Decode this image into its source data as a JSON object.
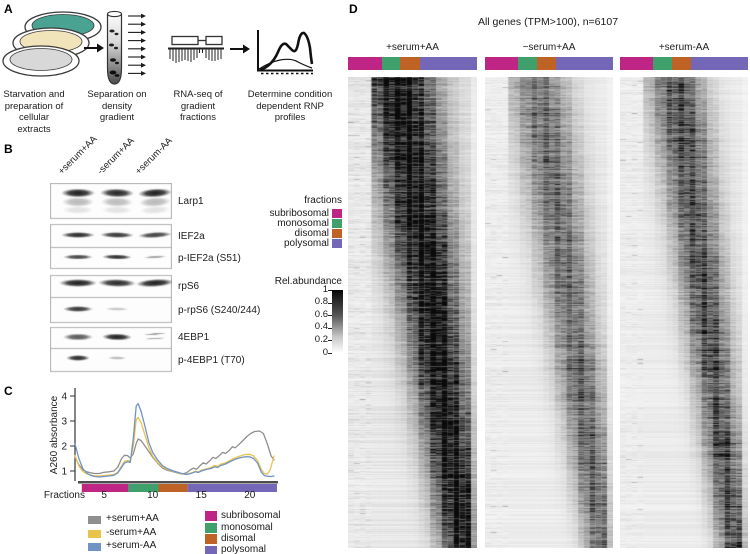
{
  "figure": {
    "panel_labels": {
      "a": "A",
      "b": "B",
      "c": "C",
      "d": "D"
    }
  },
  "colors": {
    "subribosomal": "#bf2585",
    "monosomal": "#3fa06c",
    "disomal": "#bf6226",
    "polysomal": "#7467b7",
    "cond_serum_aa": "#8f8f8f",
    "cond_minus_serum": "#e9c44d",
    "cond_minus_aa": "#7093c6",
    "dish_teal": "#4aa392",
    "dish_cream": "#f2e4ba",
    "dish_gray": "#d8d8d8"
  },
  "panel_a": {
    "captions": [
      "Starvation and\npreparation of\ncellular extracts",
      "Separation on\ndensity gradient",
      "RNA-seq of\ngradient fractions",
      "Determine condition\ndependent RNP\nprofiles"
    ]
  },
  "panel_b": {
    "lane_labels": [
      "+serum+AA",
      "-serum+AA",
      "+serum-AA"
    ],
    "rows": [
      {
        "label": "Larp1",
        "bands": [
          0.95,
          0.92,
          0.95
        ]
      },
      {
        "label": "IEF2a",
        "bands": [
          0.9,
          0.85,
          0.8
        ]
      },
      {
        "label": "p-IEF2a (S51)",
        "bands": [
          0.8,
          0.9,
          0.4
        ]
      },
      {
        "label": "rpS6",
        "bands": [
          0.95,
          0.9,
          0.95
        ]
      },
      {
        "label": "p-rpS6 (S240/244)",
        "bands": [
          0.85,
          0.25,
          0.0
        ]
      },
      {
        "label": "4EBP1",
        "bands": [
          0.7,
          0.95,
          0.45
        ]
      },
      {
        "label": "p-4EBP1 (T70)",
        "bands": [
          0.9,
          0.3,
          0.0
        ]
      }
    ],
    "fractions_legend": {
      "title": "fractions",
      "items": [
        "subribosomal",
        "monosomal",
        "disomal",
        "polysomal"
      ]
    },
    "colorbar": {
      "title": "Rel.abundance",
      "ticks": [
        "1",
        "0.8",
        "0.6",
        "0.4",
        "0.2",
        "0"
      ]
    }
  },
  "panel_c": {
    "legend_conditions": [
      "+serum+AA",
      "-serum+AA",
      "+serum-AA"
    ],
    "legend_fractions": [
      "subribosomal",
      "monosomal",
      "disomal",
      "polysomal"
    ]
  },
  "panel_d": {
    "title": "All genes (TPM>100), n=6107",
    "columns": [
      "+serum+AA",
      "−serum+AA",
      "+serum-AA"
    ],
    "heatmap": {
      "n_genes": 6107,
      "cols": 22,
      "conditions": [
        {
          "label": "+serum+AA",
          "band_start": 8.5,
          "band_end": 19.8,
          "sigma": 3.4,
          "darkness": 1.0,
          "base": 0.07,
          "seed": 7
        },
        {
          "label": "−serum+AA",
          "band_start": 9.0,
          "band_end": 20.2,
          "sigma": 2.7,
          "darkness": 0.58,
          "base": 0.05,
          "seed": 13
        },
        {
          "label": "+serum-AA",
          "band_start": 9.5,
          "band_end": 19.8,
          "sigma": 2.5,
          "darkness": 0.7,
          "base": 0.05,
          "seed": 29
        }
      ]
    }
  },
  "chart_data": {
    "type": "line",
    "title": "",
    "xlabel": "Fractions",
    "ylabel": "A260 absorbance",
    "xticks": [
      5,
      10,
      15,
      20
    ],
    "yticks": [
      1,
      2,
      3,
      4
    ],
    "xlim": [
      2,
      22.6
    ],
    "ylim": [
      0.6,
      4.3
    ],
    "legend_position": "bottom",
    "grid": false,
    "fraction_bar": [
      {
        "name": "subribosomal",
        "from": 2.7,
        "to": 7.5,
        "color": "#bf2585"
      },
      {
        "name": "monosomal",
        "from": 7.5,
        "to": 10.6,
        "color": "#3fa06c"
      },
      {
        "name": "disomal",
        "from": 10.6,
        "to": 13.6,
        "color": "#bf6226"
      },
      {
        "name": "polysomal",
        "from": 13.6,
        "to": 22.8,
        "color": "#7467b7"
      }
    ],
    "series": [
      {
        "name": "+serum+AA",
        "color": "#8f8f8f",
        "points": [
          [
            2,
            1.55
          ],
          [
            2.4,
            1.25
          ],
          [
            2.8,
            1.05
          ],
          [
            3.2,
            0.97
          ],
          [
            3.6,
            0.93
          ],
          [
            4,
            0.9
          ],
          [
            4.5,
            0.9
          ],
          [
            5,
            0.95
          ],
          [
            5.5,
            0.97
          ],
          [
            6,
            1.0
          ],
          [
            6.4,
            1.15
          ],
          [
            6.8,
            1.5
          ],
          [
            7.1,
            1.63
          ],
          [
            7.4,
            1.62
          ],
          [
            7.7,
            1.52
          ],
          [
            8,
            1.68
          ],
          [
            8.3,
            2.1
          ],
          [
            8.5,
            2.28
          ],
          [
            8.8,
            2.22
          ],
          [
            9.2,
            2.0
          ],
          [
            9.6,
            1.78
          ],
          [
            10,
            1.55
          ],
          [
            10.5,
            1.32
          ],
          [
            11,
            1.12
          ],
          [
            11.5,
            1.03
          ],
          [
            12,
            0.98
          ],
          [
            12.5,
            0.93
          ],
          [
            13,
            0.88
          ],
          [
            13.5,
            0.93
          ],
          [
            13.9,
            1.05
          ],
          [
            14.2,
            1.12
          ],
          [
            14.5,
            1.07
          ],
          [
            14.9,
            1.22
          ],
          [
            15.2,
            1.33
          ],
          [
            15.5,
            1.28
          ],
          [
            15.9,
            1.42
          ],
          [
            16.2,
            1.55
          ],
          [
            16.5,
            1.5
          ],
          [
            16.9,
            1.63
          ],
          [
            17.2,
            1.75
          ],
          [
            17.5,
            1.7
          ],
          [
            17.9,
            1.83
          ],
          [
            18.2,
            1.97
          ],
          [
            18.5,
            1.93
          ],
          [
            18.9,
            2.07
          ],
          [
            19.3,
            2.22
          ],
          [
            19.7,
            2.38
          ],
          [
            20.1,
            2.5
          ],
          [
            20.5,
            2.58
          ],
          [
            21,
            2.6
          ],
          [
            21.4,
            2.5
          ],
          [
            21.8,
            2.1
          ],
          [
            22.2,
            1.6
          ],
          [
            22.5,
            1.45
          ]
        ]
      },
      {
        "name": "-serum+AA",
        "color": "#e9c44d",
        "points": [
          [
            2,
            1.62
          ],
          [
            2.4,
            1.2
          ],
          [
            2.8,
            0.98
          ],
          [
            3.2,
            0.89
          ],
          [
            3.6,
            0.84
          ],
          [
            4,
            0.81
          ],
          [
            4.5,
            0.8
          ],
          [
            5,
            0.82
          ],
          [
            5.5,
            0.84
          ],
          [
            6,
            0.86
          ],
          [
            6.4,
            0.95
          ],
          [
            6.8,
            1.2
          ],
          [
            7.1,
            1.38
          ],
          [
            7.4,
            1.42
          ],
          [
            7.7,
            1.4
          ],
          [
            8,
            2.0
          ],
          [
            8.3,
            3.05
          ],
          [
            8.5,
            3.15
          ],
          [
            8.8,
            2.95
          ],
          [
            9.2,
            2.45
          ],
          [
            9.6,
            1.95
          ],
          [
            10,
            1.6
          ],
          [
            10.5,
            1.35
          ],
          [
            11,
            1.17
          ],
          [
            11.5,
            1.07
          ],
          [
            12,
            1.0
          ],
          [
            12.5,
            0.95
          ],
          [
            13,
            0.89
          ],
          [
            13.5,
            0.86
          ],
          [
            14,
            0.93
          ],
          [
            14.4,
            0.99
          ],
          [
            14.7,
            0.96
          ],
          [
            15,
            1.03
          ],
          [
            15.5,
            1.08
          ],
          [
            16,
            1.14
          ],
          [
            16.4,
            1.22
          ],
          [
            16.7,
            1.19
          ],
          [
            17,
            1.27
          ],
          [
            17.5,
            1.33
          ],
          [
            18,
            1.43
          ],
          [
            18.5,
            1.53
          ],
          [
            19,
            1.6
          ],
          [
            19.5,
            1.66
          ],
          [
            20,
            1.67
          ],
          [
            20.4,
            1.6
          ],
          [
            20.8,
            1.42
          ],
          [
            21.2,
            1.05
          ],
          [
            21.5,
            0.9
          ],
          [
            21.8,
            0.87
          ],
          [
            22.1,
            1.05
          ],
          [
            22.5,
            1.6
          ]
        ]
      },
      {
        "name": "+serum-AA",
        "color": "#7093c6",
        "points": [
          [
            2,
            2.08
          ],
          [
            2.4,
            1.5
          ],
          [
            2.8,
            1.1
          ],
          [
            3.2,
            0.92
          ],
          [
            3.6,
            0.83
          ],
          [
            4,
            0.78
          ],
          [
            4.5,
            0.76
          ],
          [
            5,
            0.78
          ],
          [
            5.5,
            0.8
          ],
          [
            6,
            0.83
          ],
          [
            6.4,
            0.92
          ],
          [
            6.8,
            1.15
          ],
          [
            7.1,
            1.32
          ],
          [
            7.4,
            1.37
          ],
          [
            7.7,
            1.35
          ],
          [
            8,
            2.3
          ],
          [
            8.3,
            3.6
          ],
          [
            8.5,
            3.7
          ],
          [
            8.8,
            3.4
          ],
          [
            9.2,
            2.8
          ],
          [
            9.6,
            2.15
          ],
          [
            10,
            1.75
          ],
          [
            10.5,
            1.45
          ],
          [
            11,
            1.22
          ],
          [
            11.5,
            1.1
          ],
          [
            12,
            1.02
          ],
          [
            12.5,
            0.96
          ],
          [
            13,
            0.9
          ],
          [
            13.5,
            0.86
          ],
          [
            14,
            0.91
          ],
          [
            14.4,
            0.97
          ],
          [
            14.7,
            0.94
          ],
          [
            15,
            1.0
          ],
          [
            15.5,
            1.06
          ],
          [
            16,
            1.1
          ],
          [
            16.4,
            1.17
          ],
          [
            16.7,
            1.14
          ],
          [
            17,
            1.22
          ],
          [
            17.5,
            1.28
          ],
          [
            18,
            1.38
          ],
          [
            18.5,
            1.47
          ],
          [
            19,
            1.53
          ],
          [
            19.5,
            1.57
          ],
          [
            20,
            1.57
          ],
          [
            20.4,
            1.5
          ],
          [
            20.8,
            1.32
          ],
          [
            21.2,
            0.95
          ],
          [
            21.5,
            0.82
          ],
          [
            21.8,
            0.79
          ],
          [
            22.2,
            0.78
          ],
          [
            22.5,
            0.8
          ]
        ]
      }
    ]
  }
}
